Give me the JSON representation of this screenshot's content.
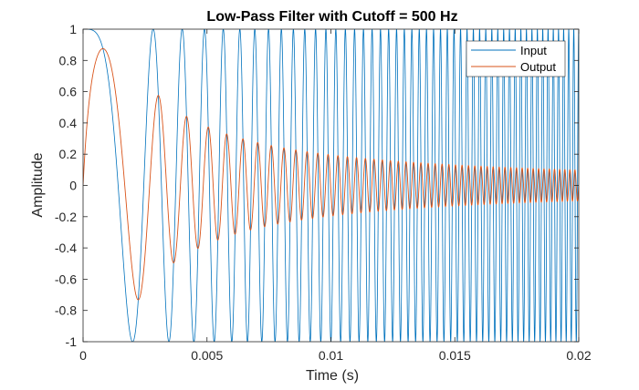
{
  "chart_data": {
    "type": "line",
    "title": "Low-Pass Filter with Cutoff = 500 Hz",
    "xlabel": "Time (s)",
    "ylabel": "Amplitude",
    "xlim": [
      0,
      0.02
    ],
    "ylim": [
      -1,
      1
    ],
    "x_ticks": [
      0,
      0.005,
      0.01,
      0.015,
      0.02
    ],
    "x_tick_labels": [
      "0",
      "0.005",
      "0.01",
      "0.015",
      "0.02"
    ],
    "y_ticks": [
      -1,
      -0.8,
      -0.6,
      -0.4,
      -0.2,
      0,
      0.2,
      0.4,
      0.6,
      0.8,
      1
    ],
    "y_tick_labels": [
      "-1",
      "-0.8",
      "-0.6",
      "-0.4",
      "-0.2",
      "0",
      "0.2",
      "0.4",
      "0.6",
      "0.8",
      "1"
    ],
    "grid": false,
    "box": true,
    "legend": {
      "position": "top-right",
      "entries": [
        "Input",
        "Output"
      ]
    },
    "colors": {
      "input": "#0072BD",
      "output": "#D95319",
      "axis": "#262626",
      "title": "#000000"
    },
    "series": [
      {
        "name": "Input",
        "description": "Linear chirp: amplitude 1, frequency sweeping from 0 Hz at t=0 to about 5000 Hz at t=0.02 s",
        "points": [
          [
            0.0,
            1.0
          ],
          [
            0.0005,
            0.969
          ],
          [
            0.001,
            0.5
          ],
          [
            0.0015,
            -0.512
          ],
          [
            0.0017,
            -1.0
          ],
          [
            0.002,
            -0.737
          ],
          [
            0.0025,
            1.0
          ],
          [
            0.003,
            -0.306
          ],
          [
            0.0033,
            -1.0
          ],
          [
            0.0035,
            -0.59
          ],
          [
            0.004,
            -0.105
          ],
          [
            0.0045,
            -0.936
          ],
          [
            0.005,
            0.7
          ]
        ]
      },
      {
        "name": "Output",
        "description": "Low-pass filtered chirp: amplitude decays as frequency rises",
        "peaks": [
          [
            0.0007,
            0.78
          ],
          [
            0.0019,
            -0.73
          ],
          [
            0.0027,
            0.57
          ],
          [
            0.0034,
            -0.5
          ],
          [
            0.004,
            0.44
          ],
          [
            0.0045,
            -0.38
          ],
          [
            0.005,
            0.32
          ],
          [
            0.006,
            0.27
          ],
          [
            0.008,
            0.2
          ],
          [
            0.01,
            0.16
          ],
          [
            0.012,
            0.14
          ],
          [
            0.014,
            0.12
          ],
          [
            0.016,
            0.11
          ],
          [
            0.018,
            0.1
          ],
          [
            0.02,
            0.095
          ]
        ]
      }
    ]
  }
}
